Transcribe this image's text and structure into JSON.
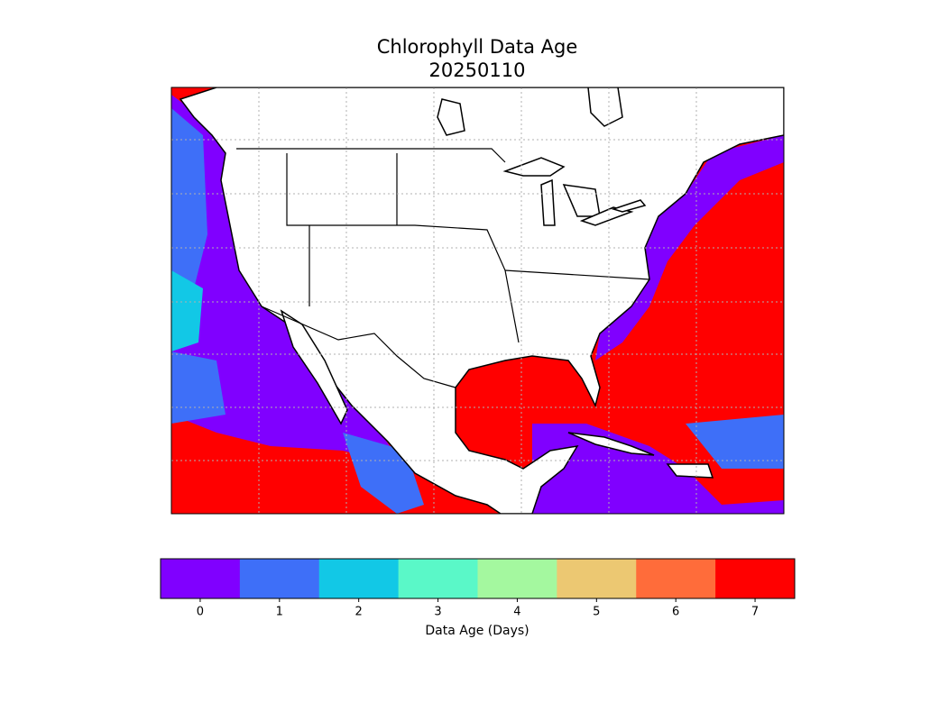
{
  "map": {
    "title": "Chlorophyll Data Age",
    "subtitle": "20250110",
    "colorbar": {
      "label": "Data Age (Days)",
      "lim": [
        -0.5,
        7.5
      ],
      "ticks": [
        0,
        1,
        2,
        3,
        4,
        5,
        6,
        7
      ],
      "colors": [
        "#8000ff",
        "#3e6ff8",
        "#12c8e6",
        "#5af8c8",
        "#a4f89f",
        "#ecc872",
        "#ff6c3a",
        "#ff0000"
      ]
    }
  }
}
